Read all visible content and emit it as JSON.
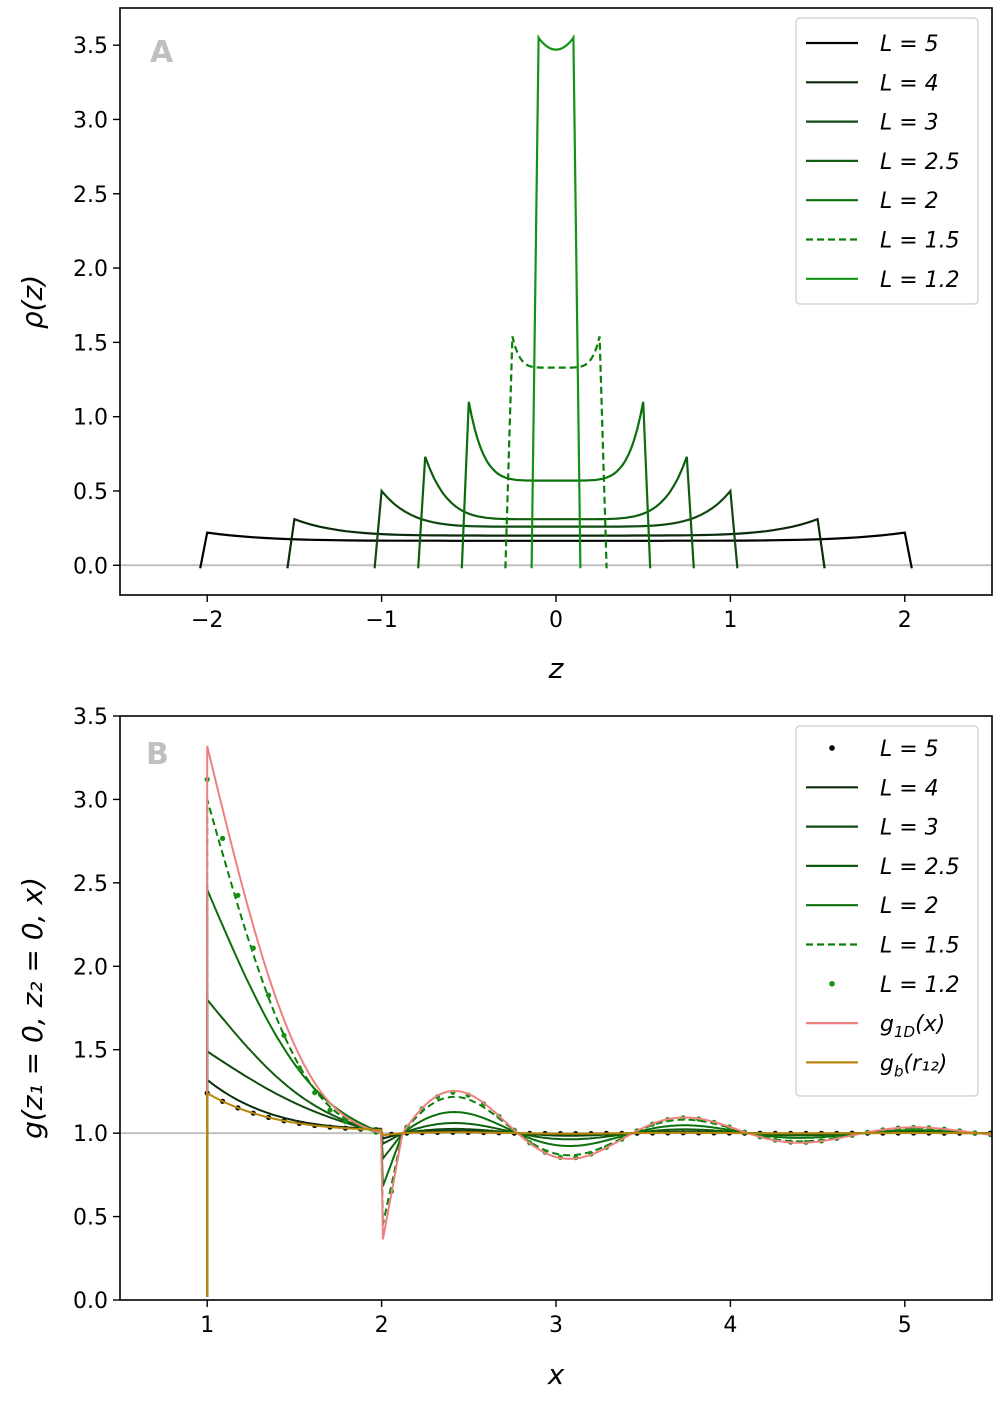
{
  "chart_data": [
    {
      "type": "line",
      "panel": "A",
      "xlabel": "z",
      "ylabel": "ρ(z)",
      "xlim": [
        -2.5,
        2.5
      ],
      "ylim": [
        -0.2,
        3.75
      ],
      "xticks": [
        -2,
        -1,
        0,
        1,
        2
      ],
      "xtick_labels": [
        "−2",
        "−1",
        "0",
        "1",
        "2"
      ],
      "yticks": [
        0.0,
        0.5,
        1.0,
        1.5,
        2.0,
        2.5,
        3.0,
        3.5
      ],
      "ytick_labels": [
        "0.0",
        "0.5",
        "1.0",
        "1.5",
        "2.0",
        "2.5",
        "3.0",
        "3.5"
      ],
      "reference_line_y": 0.0,
      "legend_position": "top-right",
      "series": [
        {
          "name": "L = 5",
          "legend_label": "L = 5",
          "color": "#000000",
          "style": "solid",
          "L": 5,
          "peak": 0.22,
          "center": 0.165
        },
        {
          "name": "L = 4",
          "legend_label": "L = 4",
          "color": "#0b2b0b",
          "style": "solid",
          "L": 4,
          "peak": 0.31,
          "center": 0.2
        },
        {
          "name": "L = 3",
          "legend_label": "L = 3",
          "color": "#104a10",
          "style": "solid",
          "L": 3,
          "peak": 0.5,
          "center": 0.26
        },
        {
          "name": "L = 2.5",
          "legend_label": "L = 2.5",
          "color": "#0f5e0f",
          "style": "solid",
          "L": 2.5,
          "peak": 0.73,
          "center": 0.31
        },
        {
          "name": "L = 2",
          "legend_label": "L = 2",
          "color": "#0b700b",
          "style": "solid",
          "L": 2,
          "peak": 1.1,
          "center": 0.57
        },
        {
          "name": "L = 1.5",
          "legend_label": "L = 1.5",
          "color": "#0a800a",
          "style": "dashed",
          "L": 1.5,
          "peak": 1.54,
          "center": 1.33
        },
        {
          "name": "L = 1.2",
          "legend_label": "L = 1.2",
          "color": "#139213",
          "style": "solid",
          "L": 1.2,
          "peak": 3.55,
          "center": 3.47
        }
      ]
    },
    {
      "type": "line",
      "panel": "B",
      "xlabel": "x",
      "ylabel": "g(z₁ = 0, z₂ = 0, x)",
      "xlim": [
        0.5,
        5.5
      ],
      "ylim": [
        0.0,
        3.5
      ],
      "xticks": [
        1,
        2,
        3,
        4,
        5
      ],
      "xtick_labels": [
        "1",
        "2",
        "3",
        "4",
        "5"
      ],
      "yticks": [
        0.0,
        0.5,
        1.0,
        1.5,
        2.0,
        2.5,
        3.0,
        3.5
      ],
      "ytick_labels": [
        "0.0",
        "0.5",
        "1.0",
        "1.5",
        "2.0",
        "2.5",
        "3.0",
        "3.5"
      ],
      "reference_line_y": 1.0,
      "legend_position": "top-right",
      "series": [
        {
          "name": "L = 5",
          "legend_label": "L = 5",
          "color": "#000000",
          "style": "dots",
          "contact": 1.24,
          "amplitude": 0.02
        },
        {
          "name": "L = 4",
          "legend_label": "L = 4",
          "color": "#0b2b0b",
          "style": "solid",
          "contact": 1.32,
          "amplitude": 0.05
        },
        {
          "name": "L = 3",
          "legend_label": "L = 3",
          "color": "#104a10",
          "style": "solid",
          "contact": 1.49,
          "amplitude": 0.1
        },
        {
          "name": "L = 2.5",
          "legend_label": "L = 2.5",
          "color": "#0f5e0f",
          "style": "solid",
          "contact": 1.8,
          "amplitude": 0.24
        },
        {
          "name": "L = 2",
          "legend_label": "L = 2",
          "color": "#0b700b",
          "style": "solid",
          "contact": 2.46,
          "amplitude": 0.5
        },
        {
          "name": "L = 1.5",
          "legend_label": "L = 1.5",
          "color": "#0a800a",
          "style": "dashed",
          "contact": 3.0,
          "amplitude": 0.86
        },
        {
          "name": "L = 1.2",
          "legend_label": "L = 1.2",
          "color": "#139213",
          "style": "dots",
          "contact": 3.12,
          "amplitude": 0.97
        },
        {
          "name": "g1D(x)",
          "legend_label": "g",
          "legend_sub": "1D",
          "legend_tail": "(x)",
          "color": "#f08080",
          "style": "solid",
          "contact": 3.32,
          "amplitude": 1.0
        },
        {
          "name": "gb(r12)",
          "legend_label": "g",
          "legend_sub": "b",
          "legend_tail": "(r₁₂)",
          "color": "#b8860b",
          "style": "solid",
          "contact": 1.24,
          "amplitude": 0.02
        }
      ]
    }
  ]
}
